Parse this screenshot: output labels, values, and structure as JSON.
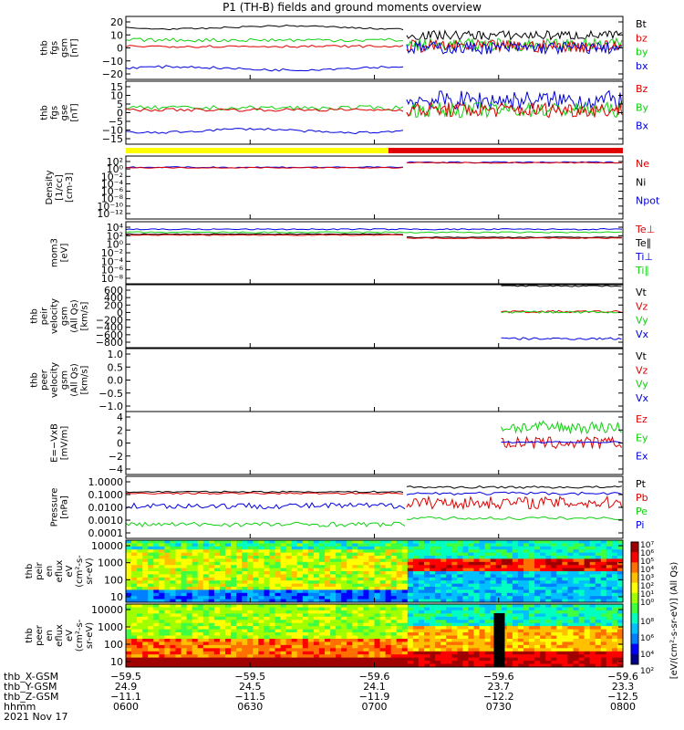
{
  "title": "P1 (TH-B) fields and ground moments overview",
  "colors": {
    "black": "#000000",
    "red": "#e00000",
    "green": "#10d010",
    "blue": "#0000e0",
    "yellow": "#ffff00"
  },
  "chart_data": [
    {
      "type": "line",
      "panel": "fgs_gsm",
      "ylabel": [
        "thb",
        "fgs",
        "gsm",
        "[nT]"
      ],
      "ylim": [
        -20,
        20
      ],
      "yticks": [
        "20",
        "10",
        "0",
        "−10",
        "−20"
      ],
      "legend": [
        "Bt",
        "bz",
        "by",
        "bx"
      ],
      "series": [
        {
          "name": "Bt",
          "before": 13,
          "after": [
            4,
            10
          ]
        },
        {
          "name": "bz",
          "before": 1,
          "after": [
            -3,
            5
          ]
        },
        {
          "name": "by",
          "before": 5,
          "after": [
            -3,
            6
          ]
        },
        {
          "name": "bx",
          "before": -13,
          "after": [
            -5,
            5
          ]
        }
      ]
    },
    {
      "type": "line",
      "panel": "fgs_gse",
      "ylabel": [
        "thb",
        "fgs",
        "gse",
        "[nT]"
      ],
      "ylim": [
        -17,
        16
      ],
      "yticks": [
        "15",
        "10",
        "5",
        "0",
        "−5",
        "−10",
        "−15"
      ],
      "legend": [
        "Bz",
        "By",
        "Bx"
      ],
      "series": [
        {
          "name": "Bz",
          "before": 1,
          "after": [
            -3,
            5
          ]
        },
        {
          "name": "By",
          "before": 2,
          "after": [
            -3,
            6
          ]
        },
        {
          "name": "Bx",
          "before": -10,
          "after": [
            0,
            12
          ]
        }
      ]
    },
    {
      "type": "line",
      "panel": "density",
      "ylabel": [
        "Density",
        "[1/cc]",
        "[cm-3]"
      ],
      "log": true,
      "yticks": [
        "10²",
        "10⁰",
        "10⁻²",
        "10⁻⁴",
        "10⁻⁶",
        "10⁻⁸",
        "10⁻¹⁰",
        "10⁻¹²"
      ],
      "legend": [
        "Ne",
        "Ni",
        "Npot"
      ]
    },
    {
      "type": "line",
      "panel": "temperature",
      "ylabel": [
        "mom3",
        "[eV]"
      ],
      "log": true,
      "yticks": [
        "10⁴",
        "10²",
        "10⁰",
        "10⁻²",
        "10⁻⁴",
        "10⁻⁶",
        "10⁻⁸"
      ],
      "legend": [
        "Te⊥",
        "Te∥",
        "Ti⊥",
        "Ti∥"
      ]
    },
    {
      "type": "line",
      "panel": "velocity_gsm",
      "ylabel": [
        "thb",
        "peir",
        "velocity",
        "gsm",
        "(All Qs)",
        "[km/s]"
      ],
      "ylim": [
        -800,
        600
      ],
      "yticks": [
        "600",
        "400",
        "200",
        "0",
        "−200",
        "−400",
        "−600",
        "−800"
      ],
      "legend": [
        "Vt",
        "Vz",
        "Vy",
        "Vx"
      ],
      "series": [
        {
          "name": "Vt",
          "value": 580
        },
        {
          "name": "Vz",
          "value": 0
        },
        {
          "name": "Vy",
          "value": -10
        },
        {
          "name": "Vx",
          "value": -600
        }
      ]
    },
    {
      "type": "line",
      "panel": "velocity_gsm_peer",
      "ylabel": [
        "thb",
        "peer",
        "velocity",
        "gsm",
        "(All Qs)",
        "[km/s]"
      ],
      "ylim": [
        -1,
        1
      ],
      "yticks": [
        "1.0",
        "0.5",
        "0.0",
        "−0.5",
        "−1.0"
      ],
      "legend": [
        "Vt",
        "Vz",
        "Vy",
        "Vx"
      ]
    },
    {
      "type": "line",
      "panel": "efield",
      "ylabel": [
        "E=−VxB",
        "[mV/m]"
      ],
      "ylim": [
        -4,
        4
      ],
      "yticks": [
        "4",
        "2",
        "0",
        "−2",
        "−4"
      ],
      "legend": [
        "Ez",
        "Ey",
        "Ex"
      ]
    },
    {
      "type": "line",
      "panel": "pressure",
      "ylabel": [
        "Pressure",
        "[nPa]"
      ],
      "log": true,
      "yticks": [
        "1.0000",
        "0.1000",
        "0.0100",
        "0.0010",
        "0.0001"
      ],
      "legend": [
        "Pt",
        "Pb",
        "Pe",
        "Pi"
      ]
    },
    {
      "type": "heatmap",
      "panel": "peir_eflux",
      "ylabel": [
        "thb",
        "peir",
        "en",
        "eflux",
        "eV",
        "(cm²-s-",
        "sr-eV)"
      ],
      "yticks": [
        "10000",
        "1000",
        "100",
        "10"
      ]
    },
    {
      "type": "heatmap",
      "panel": "peer_eflux",
      "ylabel": [
        "thb",
        "peer",
        "en",
        "eflux",
        "eV",
        "(cm²-s-",
        "sr-eV)"
      ],
      "yticks": [
        "10000",
        "1000",
        "100",
        "10"
      ]
    }
  ],
  "colorbar": {
    "ticks": [
      "10⁷",
      "10⁶",
      "10⁵",
      "10⁴",
      "10³",
      "10²",
      "10¹",
      "10⁰"
    ],
    "ticks_lower": [
      "10⁸",
      "10⁶",
      "10⁴",
      "10²"
    ],
    "label": "[eV/(cm²-s-sr-eV)] (All Qs)"
  },
  "xaxis": {
    "row_labels": [
      "thb_X-GSM",
      "thb_Y-GSM",
      "thb_Z-GSM",
      "hhmm",
      "2021 Nov 17"
    ],
    "ticks": [
      {
        "x_gsm": "−59.5",
        "y_gsm": "24.9",
        "z_gsm": "−11.1",
        "hhmm": "0600"
      },
      {
        "x_gsm": "−59.5",
        "y_gsm": "24.5",
        "z_gsm": "−11.5",
        "hhmm": "0630"
      },
      {
        "x_gsm": "−59.6",
        "y_gsm": "24.1",
        "z_gsm": "−11.9",
        "hhmm": "0700"
      },
      {
        "x_gsm": "−59.6",
        "y_gsm": "23.7",
        "z_gsm": "−12.2",
        "hhmm": "0730"
      },
      {
        "x_gsm": "−59.6",
        "y_gsm": "23.3",
        "z_gsm": "−12.5",
        "hhmm": "0800"
      }
    ]
  }
}
